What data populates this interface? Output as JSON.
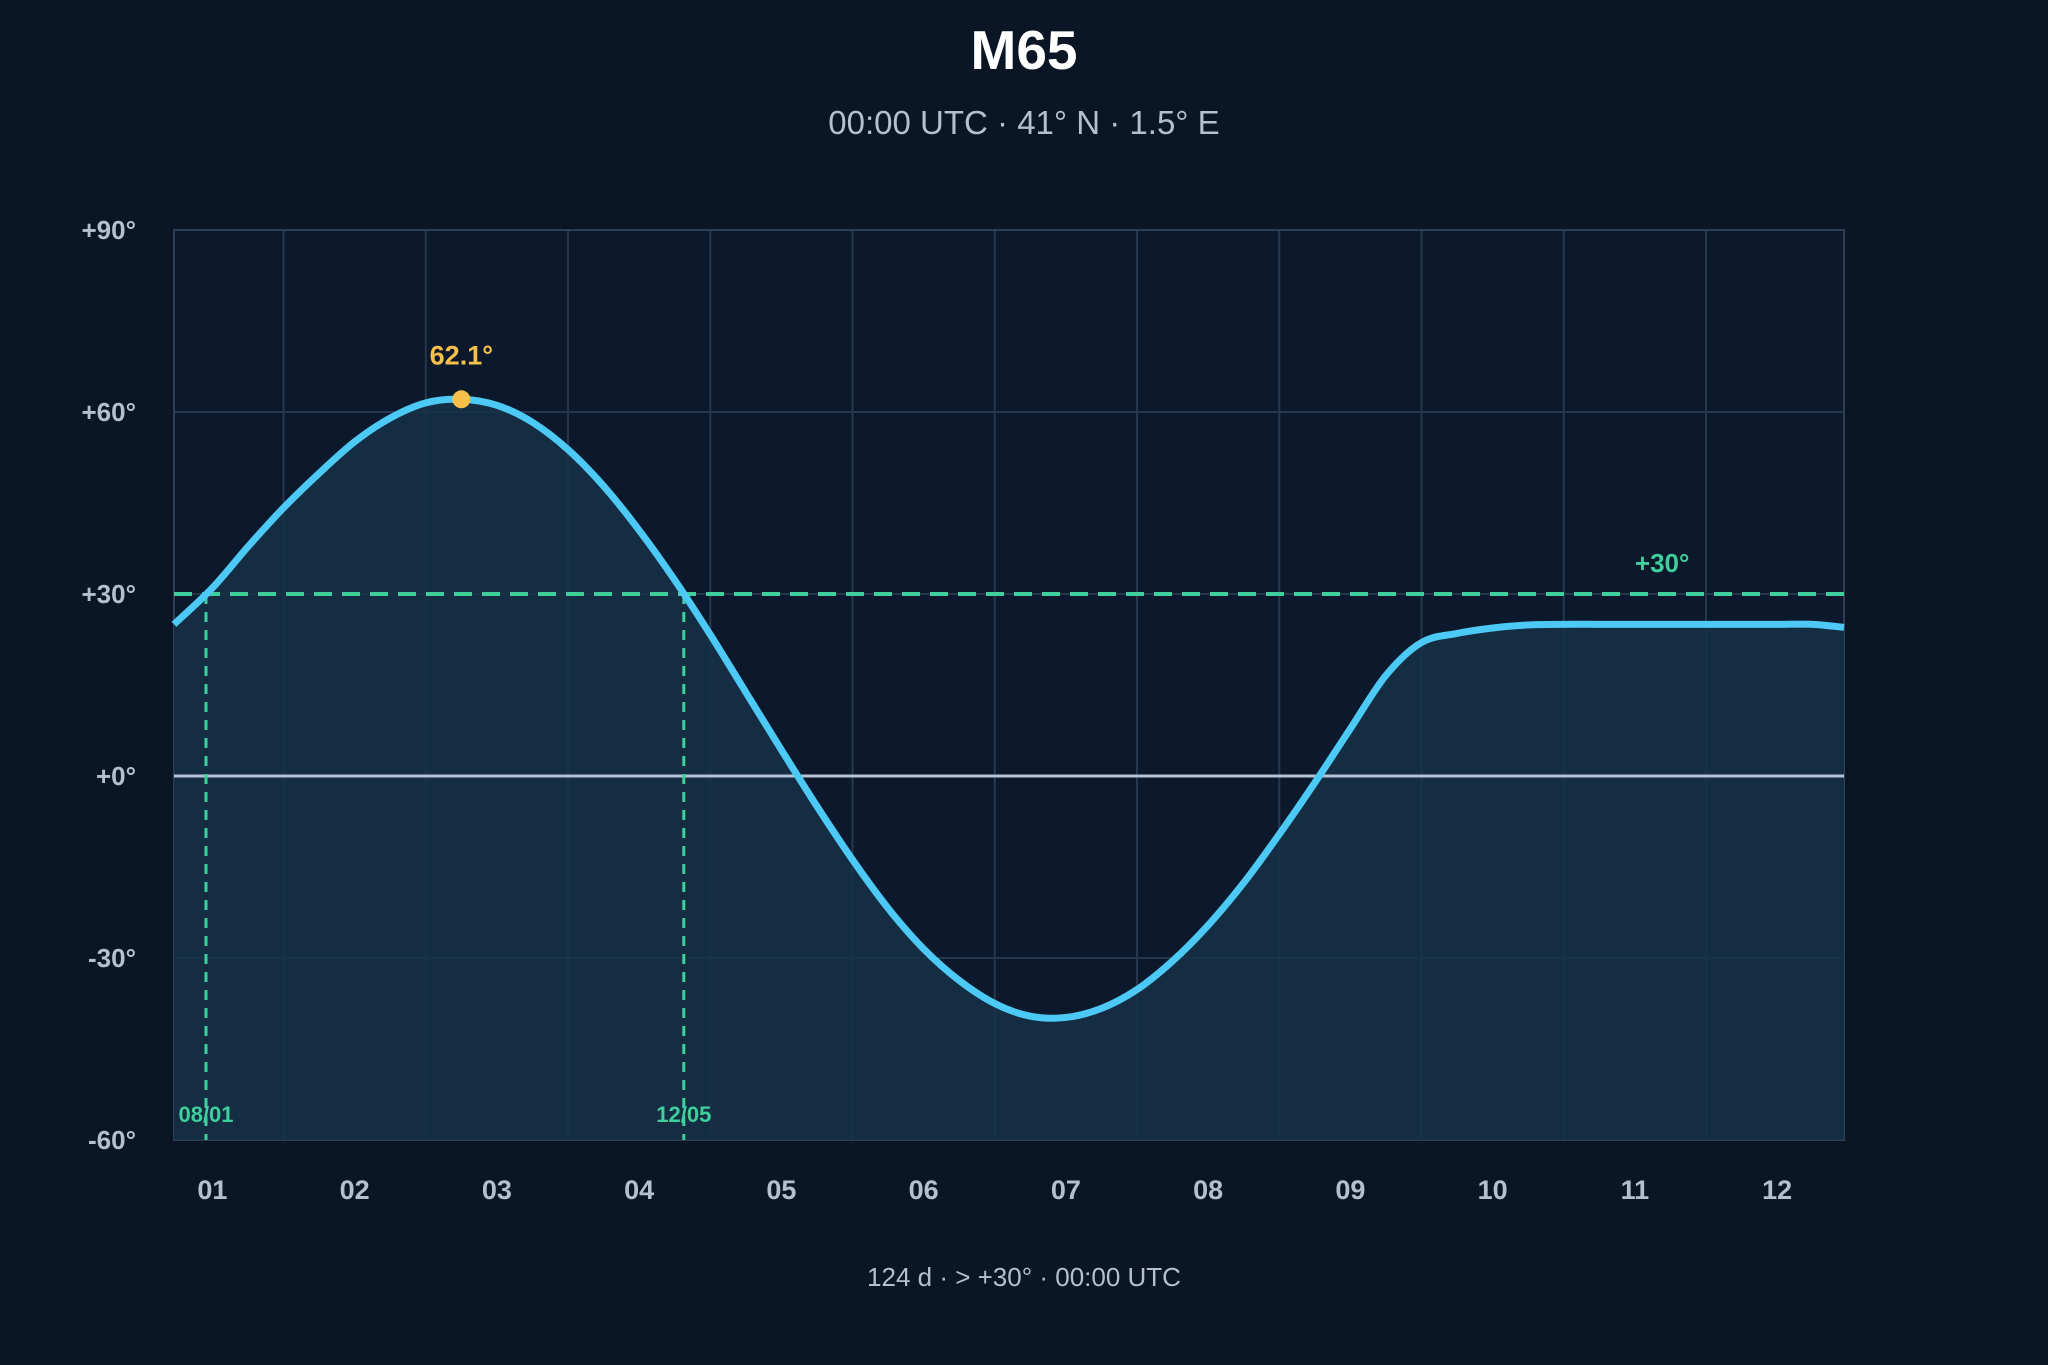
{
  "chart_data": {
    "type": "area",
    "title": "M65",
    "subtitle": "00:00 UTC · 41° N · 1.5° E",
    "footer": "124 d · > +30° · 00:00 UTC",
    "xlabel": "",
    "ylabel": "",
    "x_tick_labels": [
      "01",
      "02",
      "03",
      "04",
      "05",
      "06",
      "07",
      "08",
      "09",
      "10",
      "11",
      "12"
    ],
    "y_ticks": [
      -60,
      -30,
      0,
      30,
      60,
      90
    ],
    "y_tick_labels": [
      "-60°",
      "-30°",
      "+0°",
      "+30°",
      "+60°",
      "+90°"
    ],
    "ylim": [
      -60,
      90
    ],
    "xlim": [
      -0.27,
      11.47
    ],
    "grid": true,
    "series": [
      {
        "x": [
          -0.27,
          0.0,
          0.25,
          0.5,
          0.75,
          1.0,
          1.25,
          1.5,
          1.75,
          2.0,
          2.25,
          2.5,
          2.75,
          3.0,
          3.25,
          3.5,
          3.75,
          4.0,
          4.25,
          4.5,
          4.75,
          5.0,
          5.25,
          5.5,
          5.75,
          6.0,
          6.25,
          6.5,
          6.75,
          7.0,
          7.25,
          7.5,
          7.75,
          8.0,
          8.25,
          8.5,
          8.75,
          9.0,
          9.25,
          9.5,
          9.75,
          10.0,
          10.25,
          10.5,
          10.75,
          11.0,
          11.25,
          11.47
        ],
        "y": [
          25.0,
          31.0,
          37.8,
          44.2,
          49.9,
          55.1,
          59.0,
          61.5,
          62.1,
          61.1,
          58.3,
          53.8,
          47.8,
          40.5,
          32.3,
          23.3,
          13.8,
          4.3,
          -5.0,
          -13.8,
          -21.8,
          -28.5,
          -33.7,
          -37.5,
          -39.6,
          -39.8,
          -38.3,
          -35.2,
          -30.5,
          -24.6,
          -17.6,
          -9.6,
          -1.1,
          7.8,
          16.6,
          22.0,
          23.5,
          24.4,
          24.9,
          25.0,
          25.0,
          25.0,
          25.0,
          25.0,
          25.0,
          25.0,
          25.0,
          24.5
        ]
      }
    ],
    "threshold": {
      "value": 30,
      "label": "+30°",
      "color": "#3ecf9b"
    },
    "peak": {
      "value": 62.1,
      "label": "62.1°",
      "color": "#f7c04a"
    },
    "crossings": [
      {
        "label": "08/01"
      },
      {
        "label": "12/05"
      }
    ],
    "colors": {
      "background": "#0a1526",
      "line": "#4cc9f5",
      "fill": "#163148",
      "grid": "#26384c",
      "zero_line": "#b4c4d6",
      "tick_text": "#b4c0d0"
    }
  }
}
